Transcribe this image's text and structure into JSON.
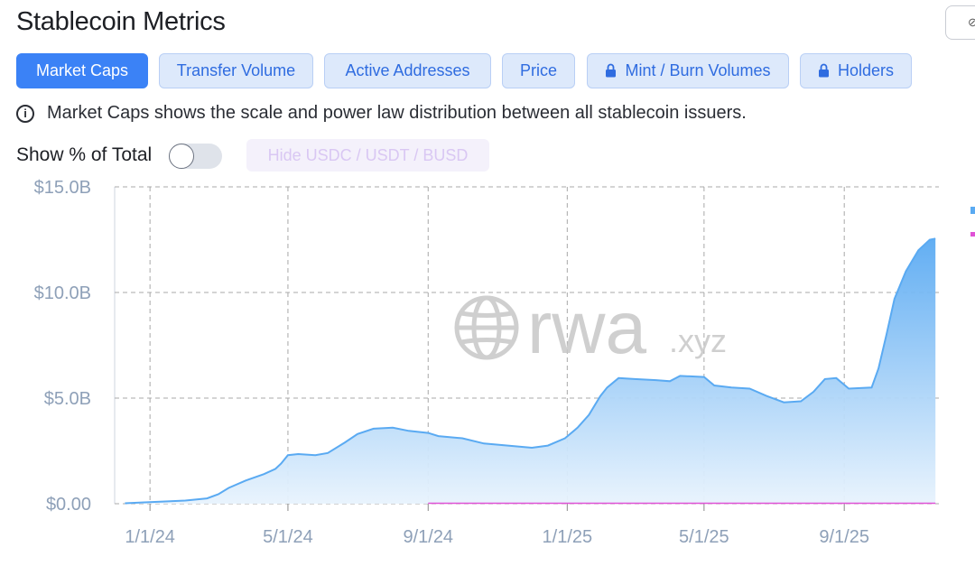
{
  "header": {
    "title": "Stablecoin Metrics"
  },
  "tabs": [
    {
      "label": "Market Caps",
      "active": true,
      "locked": false
    },
    {
      "label": "Transfer Volume",
      "active": false,
      "locked": false
    },
    {
      "label": "Active Addresses",
      "active": false,
      "locked": false
    },
    {
      "label": "Price",
      "active": false,
      "locked": false
    },
    {
      "label": "Mint / Burn Volumes",
      "active": false,
      "locked": true
    },
    {
      "label": "Holders",
      "active": false,
      "locked": true
    }
  ],
  "info": {
    "icon": "info-circle-icon",
    "text": "Market Caps shows the scale and power law distribution between all stablecoin issuers."
  },
  "controls": {
    "show_pct_label": "Show % of Total",
    "show_pct_on": false,
    "hide_button_label": "Hide USDC / USDT / BUSD"
  },
  "watermark": {
    "brand": "rwa",
    "suffix": ".xyz",
    "icon": "globe-icon"
  },
  "colors": {
    "accent": "#3b82f6",
    "area_top": "#5aaaf2",
    "area_bottom": "#e8f3fd",
    "line": "#5aaaf2",
    "secondary_line": "#e052d6"
  },
  "chart_data": {
    "type": "area",
    "ylim": [
      0,
      15
    ],
    "y_ticks": [
      {
        "value": 0,
        "label": "$0.00"
      },
      {
        "value": 5,
        "label": "$5.0B"
      },
      {
        "value": 10,
        "label": "$10.0B"
      },
      {
        "value": 15,
        "label": "$15.0B"
      }
    ],
    "x_ticks": [
      "1/1/24",
      "5/1/24",
      "9/1/24",
      "1/1/25",
      "5/1/25",
      "9/1/25"
    ],
    "grid": true,
    "series": [
      {
        "color": "#5aaaf2",
        "points": [
          [
            "2023-12-10",
            0.02
          ],
          [
            "2023-12-25",
            0.06
          ],
          [
            "2024-01-10",
            0.1
          ],
          [
            "2024-02-01",
            0.15
          ],
          [
            "2024-02-20",
            0.25
          ],
          [
            "2024-03-01",
            0.45
          ],
          [
            "2024-03-10",
            0.75
          ],
          [
            "2024-03-25",
            1.1
          ],
          [
            "2024-04-10",
            1.4
          ],
          [
            "2024-04-20",
            1.65
          ],
          [
            "2024-04-25",
            1.9
          ],
          [
            "2024-05-01",
            2.3
          ],
          [
            "2024-05-10",
            2.35
          ],
          [
            "2024-05-25",
            2.3
          ],
          [
            "2024-06-05",
            2.4
          ],
          [
            "2024-06-20",
            2.9
          ],
          [
            "2024-07-01",
            3.3
          ],
          [
            "2024-07-15",
            3.55
          ],
          [
            "2024-08-01",
            3.6
          ],
          [
            "2024-08-15",
            3.45
          ],
          [
            "2024-09-01",
            3.35
          ],
          [
            "2024-09-10",
            3.2
          ],
          [
            "2024-10-01",
            3.1
          ],
          [
            "2024-10-20",
            2.85
          ],
          [
            "2024-11-10",
            2.75
          ],
          [
            "2024-12-01",
            2.65
          ],
          [
            "2024-12-15",
            2.75
          ],
          [
            "2024-12-30",
            3.1
          ],
          [
            "2025-01-10",
            3.6
          ],
          [
            "2025-01-20",
            4.2
          ],
          [
            "2025-01-30",
            5.1
          ],
          [
            "2025-02-05",
            5.5
          ],
          [
            "2025-02-15",
            5.95
          ],
          [
            "2025-03-01",
            5.9
          ],
          [
            "2025-03-20",
            5.85
          ],
          [
            "2025-04-01",
            5.8
          ],
          [
            "2025-04-10",
            6.05
          ],
          [
            "2025-05-01",
            6.0
          ],
          [
            "2025-05-10",
            5.6
          ],
          [
            "2025-05-25",
            5.5
          ],
          [
            "2025-06-10",
            5.45
          ],
          [
            "2025-06-25",
            5.1
          ],
          [
            "2025-07-10",
            4.8
          ],
          [
            "2025-07-25",
            4.85
          ],
          [
            "2025-08-05",
            5.3
          ],
          [
            "2025-08-15",
            5.9
          ],
          [
            "2025-08-25",
            5.95
          ],
          [
            "2025-09-05",
            5.45
          ],
          [
            "2025-09-25",
            5.5
          ],
          [
            "2025-10-01",
            6.4
          ],
          [
            "2025-10-08",
            8.0
          ],
          [
            "2025-10-15",
            9.7
          ],
          [
            "2025-10-25",
            11.0
          ],
          [
            "2025-11-05",
            12.0
          ],
          [
            "2025-11-15",
            12.5
          ],
          [
            "2025-11-20",
            12.55
          ]
        ]
      },
      {
        "color": "#e052d6",
        "points": [
          [
            "2024-09-01",
            0.02
          ],
          [
            "2025-11-20",
            0.02
          ]
        ]
      }
    ]
  }
}
